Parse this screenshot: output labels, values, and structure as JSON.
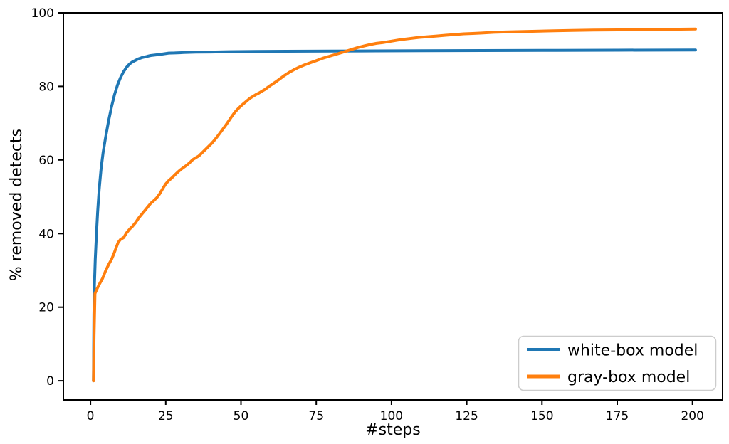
{
  "chart_data": {
    "type": "line",
    "title": "",
    "xlabel": "#steps",
    "ylabel": "% removed detects",
    "xlim": [
      -9,
      210
    ],
    "ylim": [
      -5.2,
      100
    ],
    "x_ticks": [
      0,
      25,
      50,
      75,
      100,
      125,
      150,
      175,
      200
    ],
    "y_ticks": [
      0,
      20,
      40,
      60,
      80,
      100
    ],
    "grid": false,
    "background_color": "#ffffff",
    "spine_color": "#000000",
    "legend_position": "lower right",
    "series": [
      {
        "name": "white-box model",
        "color": "#1f77b4",
        "final_value": 90,
        "points": [
          [
            1,
            0
          ],
          [
            1.15,
            18
          ],
          [
            1.3,
            26
          ],
          [
            1.6,
            33
          ],
          [
            2,
            40
          ],
          [
            2.4,
            46
          ],
          [
            2.9,
            52
          ],
          [
            3.5,
            57.5
          ],
          [
            4.2,
            62
          ],
          [
            5,
            66
          ],
          [
            6,
            70.5
          ],
          [
            7,
            74.5
          ],
          [
            8,
            77.8
          ],
          [
            9,
            80.4
          ],
          [
            10,
            82.4
          ],
          [
            11,
            84
          ],
          [
            12,
            85.2
          ],
          [
            13,
            86.1
          ],
          [
            14,
            86.7
          ],
          [
            15,
            87.1
          ],
          [
            16,
            87.5
          ],
          [
            17,
            87.8
          ],
          [
            18,
            88
          ],
          [
            19,
            88.2
          ],
          [
            20,
            88.4
          ],
          [
            22,
            88.6
          ],
          [
            24,
            88.8
          ],
          [
            26,
            89.05
          ],
          [
            28,
            89.1
          ],
          [
            31,
            89.2
          ],
          [
            35,
            89.3
          ],
          [
            40,
            89.35
          ],
          [
            46,
            89.45
          ],
          [
            55,
            89.5
          ],
          [
            65,
            89.55
          ],
          [
            80,
            89.6
          ],
          [
            95,
            89.65
          ],
          [
            110,
            89.7
          ],
          [
            130,
            89.75
          ],
          [
            155,
            89.8
          ],
          [
            175,
            89.85
          ],
          [
            201,
            89.9
          ]
        ]
      },
      {
        "name": "gray-box model",
        "color": "#ff7f0e",
        "final_value": 96,
        "points": [
          [
            1,
            0
          ],
          [
            1.2,
            12
          ],
          [
            1.5,
            23.7
          ],
          [
            2.2,
            25
          ],
          [
            3,
            26.3
          ],
          [
            4,
            27.8
          ],
          [
            5,
            29.8
          ],
          [
            6,
            31.5
          ],
          [
            7,
            33
          ],
          [
            7.8,
            34.5
          ],
          [
            8.6,
            36.3
          ],
          [
            9.2,
            37.6
          ],
          [
            10,
            38.4
          ],
          [
            11,
            38.9
          ],
          [
            12,
            40.2
          ],
          [
            13,
            41.2
          ],
          [
            14,
            42
          ],
          [
            15,
            43
          ],
          [
            16,
            44.2
          ],
          [
            17,
            45.2
          ],
          [
            18,
            46.2
          ],
          [
            19,
            47.2
          ],
          [
            20,
            48.2
          ],
          [
            21,
            48.9
          ],
          [
            22,
            49.7
          ],
          [
            23,
            50.8
          ],
          [
            24,
            52.2
          ],
          [
            25,
            53.5
          ],
          [
            26,
            54.4
          ],
          [
            27,
            55.1
          ],
          [
            28,
            55.9
          ],
          [
            29,
            56.7
          ],
          [
            30,
            57.4
          ],
          [
            31,
            58
          ],
          [
            32,
            58.6
          ],
          [
            33,
            59.3
          ],
          [
            34,
            60.1
          ],
          [
            35,
            60.6
          ],
          [
            36,
            61.1
          ],
          [
            37,
            61.9
          ],
          [
            38,
            62.7
          ],
          [
            39,
            63.5
          ],
          [
            40,
            64.3
          ],
          [
            41,
            65.2
          ],
          [
            42,
            66.2
          ],
          [
            43,
            67.3
          ],
          [
            44,
            68.4
          ],
          [
            45,
            69.5
          ],
          [
            46,
            70.7
          ],
          [
            47,
            71.9
          ],
          [
            48,
            73
          ],
          [
            49,
            73.9
          ],
          [
            50,
            74.7
          ],
          [
            51,
            75.4
          ],
          [
            52,
            76.1
          ],
          [
            53,
            76.8
          ],
          [
            54,
            77.3
          ],
          [
            55,
            77.8
          ],
          [
            56,
            78.2
          ],
          [
            57,
            78.7
          ],
          [
            58,
            79.2
          ],
          [
            59,
            79.8
          ],
          [
            60,
            80.4
          ],
          [
            61.5,
            81.2
          ],
          [
            63,
            82.1
          ],
          [
            64.5,
            83
          ],
          [
            66,
            83.8
          ],
          [
            67.5,
            84.5
          ],
          [
            69,
            85.1
          ],
          [
            71,
            85.8
          ],
          [
            73,
            86.4
          ],
          [
            75,
            87
          ],
          [
            77,
            87.6
          ],
          [
            79,
            88.1
          ],
          [
            81,
            88.6
          ],
          [
            83,
            89.1
          ],
          [
            85,
            89.6
          ],
          [
            87,
            90.1
          ],
          [
            89,
            90.6
          ],
          [
            91,
            91
          ],
          [
            93,
            91.4
          ],
          [
            95,
            91.7
          ],
          [
            97,
            91.9
          ],
          [
            100,
            92.3
          ],
          [
            103,
            92.7
          ],
          [
            106,
            93
          ],
          [
            109,
            93.3
          ],
          [
            112,
            93.5
          ],
          [
            115,
            93.7
          ],
          [
            118,
            93.9
          ],
          [
            121,
            94.1
          ],
          [
            124,
            94.3
          ],
          [
            127,
            94.4
          ],
          [
            130,
            94.5
          ],
          [
            134,
            94.7
          ],
          [
            138,
            94.8
          ],
          [
            143,
            94.9
          ],
          [
            148,
            95
          ],
          [
            154,
            95.1
          ],
          [
            160,
            95.2
          ],
          [
            167,
            95.3
          ],
          [
            175,
            95.35
          ],
          [
            183,
            95.45
          ],
          [
            191,
            95.5
          ],
          [
            201,
            95.6
          ]
        ]
      }
    ]
  }
}
